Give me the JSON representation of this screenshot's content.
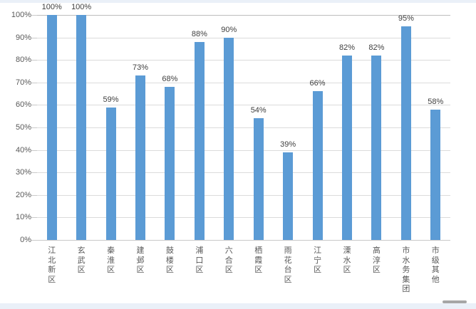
{
  "chart_data": {
    "type": "bar",
    "title": "",
    "xlabel": "",
    "ylabel": "",
    "unit": "%",
    "categories": [
      "江北新区",
      "玄武区",
      "秦淮区",
      "建邺区",
      "鼓楼区",
      "浦口区",
      "六合区",
      "栖霞区",
      "雨花台区",
      "江宁区",
      "溧水区",
      "高淳区",
      "市水务集团",
      "市级其他"
    ],
    "values": [
      100,
      100,
      59,
      73,
      68,
      88,
      90,
      54,
      39,
      66,
      82,
      82,
      95,
      58
    ],
    "data_labels": [
      "100%",
      "100%",
      "59%",
      "73%",
      "68%",
      "88%",
      "90%",
      "54%",
      "39%",
      "66%",
      "82%",
      "82%",
      "95%",
      "58%"
    ],
    "y_ticks": [
      "0%",
      "10%",
      "20%",
      "30%",
      "40%",
      "50%",
      "60%",
      "70%",
      "80%",
      "90%",
      "100%"
    ],
    "ylim": [
      0,
      100
    ],
    "grid": true,
    "legend": "none",
    "bar_color": "#5B9BD5"
  },
  "colors": {
    "gridline": "#DBDBDB",
    "top_gridline": "#BDBDBD",
    "axis_line": "#C9C9C9",
    "tick_mark": "#C9C9C9",
    "y_label_text": "#595959",
    "x_label_text": "#595959",
    "data_label_text": "#3F3F3F",
    "edge_strip": "#EAF0F8",
    "scroll_thumb": "#A6A6A6"
  }
}
